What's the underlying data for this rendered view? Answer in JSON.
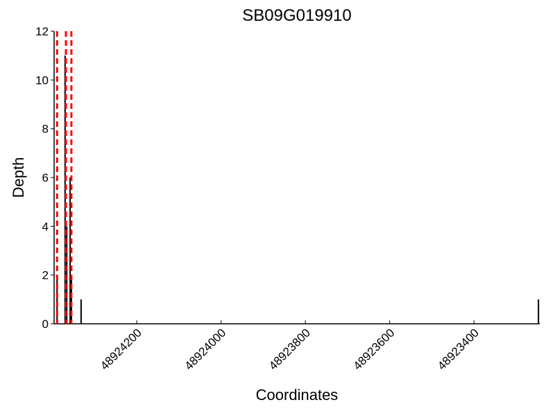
{
  "chart_data": {
    "type": "bar",
    "title": "SB09G019910",
    "xlabel": "Coordinates",
    "ylabel": "Depth",
    "x": [
      48924389,
      48924370,
      48924366,
      48924358,
      48924355,
      48924332,
      48923247
    ],
    "values": [
      2,
      11,
      4,
      6,
      2,
      1,
      1
    ],
    "color": "#000000",
    "vlines": [
      48924389,
      48924368,
      48924355
    ],
    "vline_color": "#ff0000",
    "xlim": [
      48924396,
      48923244
    ],
    "xticks": [
      48924200,
      48924000,
      48923800,
      48923600,
      48923400
    ],
    "ylim": [
      0,
      12
    ],
    "yticks": [
      0,
      2,
      4,
      6,
      8,
      10,
      12
    ]
  }
}
